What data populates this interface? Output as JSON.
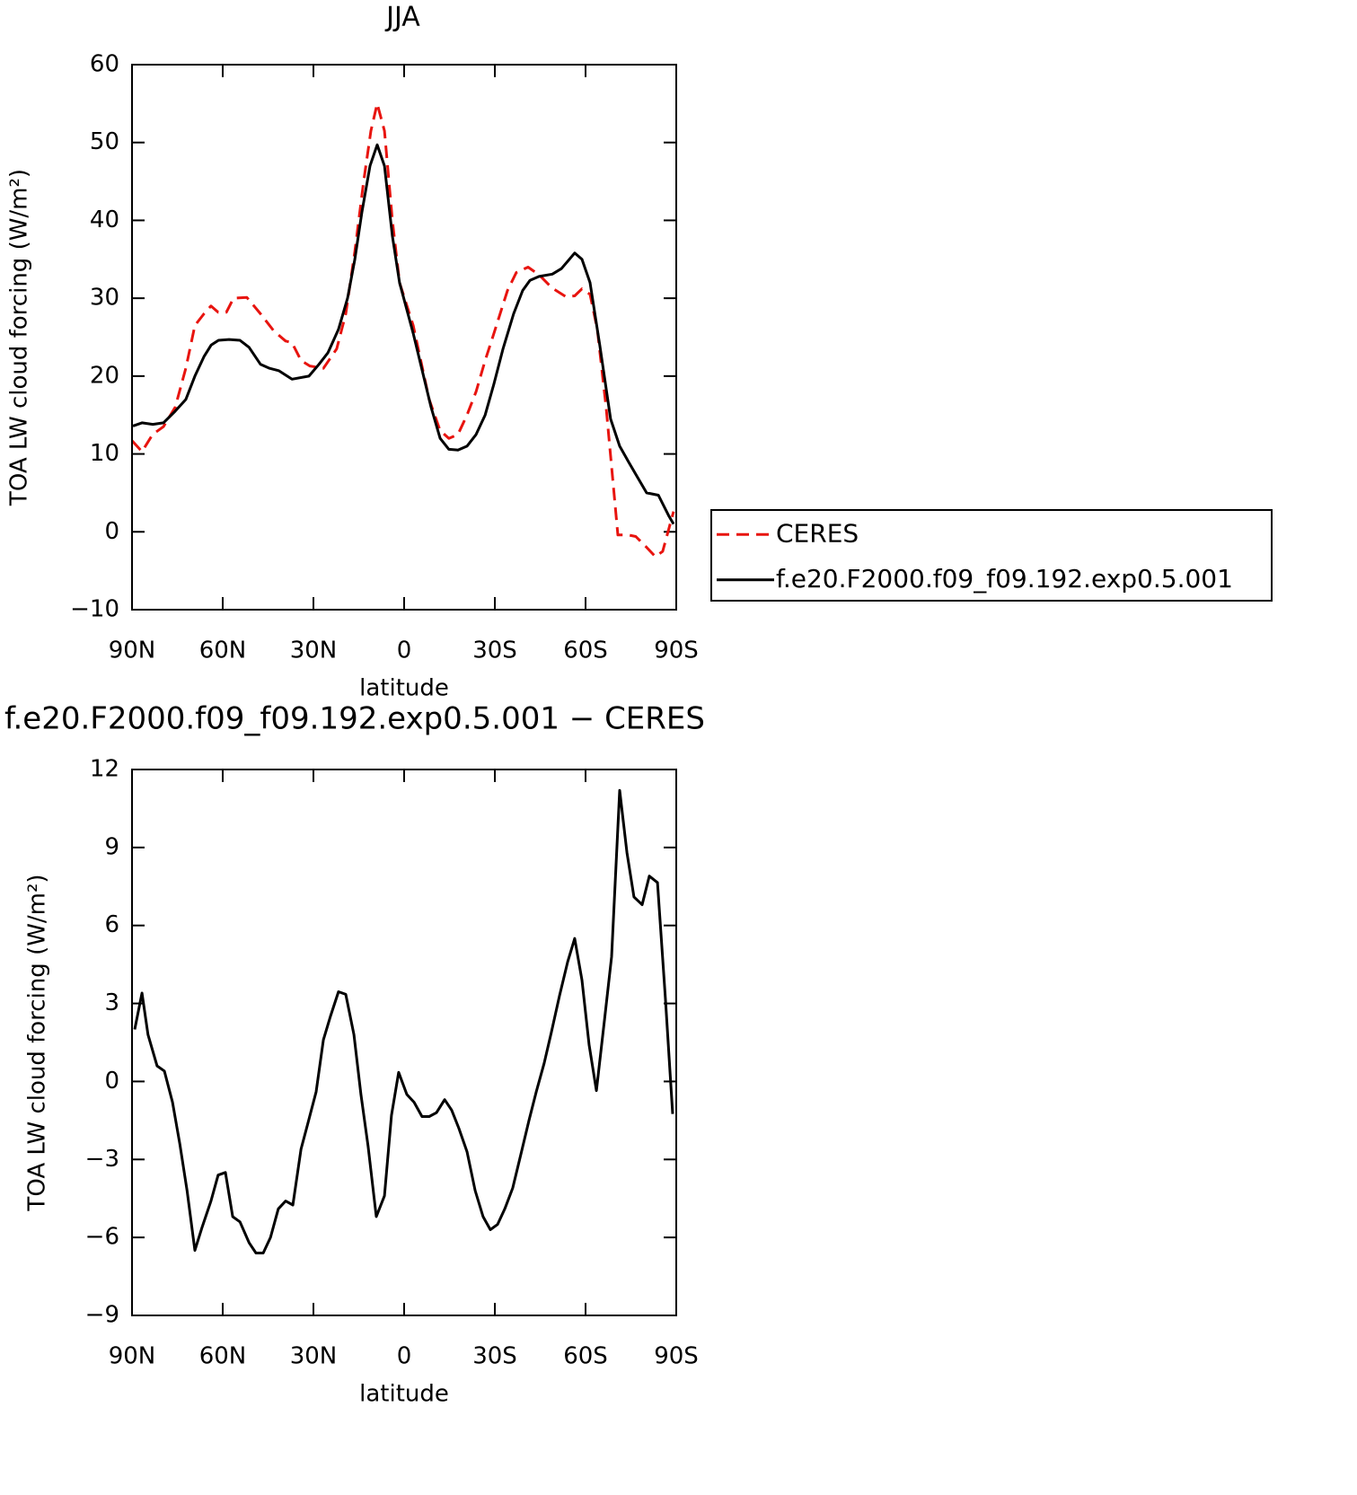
{
  "chart_data": [
    {
      "type": "line",
      "title": "JJA",
      "xlabel": "latitude",
      "ylabel": "TOA LW cloud forcing (W/m²)",
      "xlim": [
        90,
        -90
      ],
      "ylim": [
        -10,
        60
      ],
      "xticks": [
        {
          "value": 90,
          "label": "90N"
        },
        {
          "value": 60,
          "label": "60N"
        },
        {
          "value": 30,
          "label": "30N"
        },
        0,
        {
          "value": -30,
          "label": "30S"
        },
        {
          "value": -60,
          "label": "60S"
        },
        {
          "value": -90,
          "label": "90S"
        }
      ],
      "yticks": [
        {
          "value": -10,
          "label": "−10"
        },
        0,
        10,
        20,
        30,
        40,
        50,
        60
      ],
      "legend": "right",
      "series": [
        {
          "name": "CERES",
          "color": "#e8140f",
          "dashed": true,
          "x": [
            90,
            86.7,
            83.2,
            79.6,
            75.7,
            72.2,
            69.2,
            66.2,
            63.9,
            61.5,
            58.8,
            56.4,
            52,
            47.5,
            43.1,
            39.2,
            37.1,
            34.1,
            31.2,
            26.7,
            22.3,
            19.3,
            16.3,
            13.4,
            11,
            8.9,
            6.5,
            3.9,
            1.5,
            -3,
            -8.3,
            -11.9,
            -14.8,
            -17.8,
            -20.8,
            -23.8,
            -26.8,
            -29.7,
            -34.2,
            -37.1,
            -41,
            -44.6,
            -49,
            -53.5,
            -56.4,
            -58.8,
            -61.5,
            -63.9,
            -66.8,
            -70.7,
            -74.2,
            -76.6,
            -80.2,
            -83.1,
            -85.5,
            -89.1
          ],
          "values": [
            11.7,
            10.3,
            12.5,
            13.5,
            16,
            21,
            26.5,
            28,
            29,
            28.2,
            28.2,
            30,
            30.1,
            28,
            25.8,
            24.5,
            24.3,
            22,
            21.3,
            21,
            23.5,
            28,
            36,
            45,
            51.5,
            55,
            51.5,
            40,
            32,
            26.5,
            17,
            13,
            12,
            12.5,
            15,
            18,
            22,
            25.5,
            31,
            33.3,
            34,
            33,
            31.3,
            30.2,
            30.3,
            31.2,
            30.5,
            26,
            16,
            -0.4,
            -0.4,
            -0.6,
            -2,
            -3.2,
            -2.5,
            2.6
          ]
        },
        {
          "name": "f.e20.F2000.f09_f09.192.exp0.5.001",
          "color": "#000000",
          "dashed": false,
          "x": [
            89.7,
            86.7,
            83.1,
            79.6,
            75.7,
            72.2,
            69.2,
            66.2,
            63.8,
            61.4,
            57.9,
            54.3,
            51.3,
            47.5,
            44.5,
            41.5,
            37.1,
            31.5,
            28.2,
            25.2,
            21.7,
            18.7,
            16.3,
            14,
            11.3,
            8.9,
            6.5,
            3.9,
            1.5,
            -3,
            -8.9,
            -11.9,
            -14.8,
            -17.8,
            -20.8,
            -23.8,
            -26.8,
            -29.7,
            -32.7,
            -36.2,
            -39.2,
            -41.6,
            -44.6,
            -49,
            -52,
            -56.4,
            -58.8,
            -61.5,
            -64.7,
            -68.3,
            -71.3,
            -74.2,
            -77.2,
            -80.2,
            -84.1,
            -87.6,
            -89.1
          ],
          "values": [
            13.6,
            14,
            13.8,
            14,
            15.5,
            17,
            20,
            22.5,
            24,
            24.6,
            24.7,
            24.6,
            23.7,
            21.5,
            21,
            20.7,
            19.6,
            20,
            21.5,
            23,
            26,
            30,
            35,
            41,
            47,
            49.7,
            47,
            38,
            32,
            25.5,
            16,
            12,
            10.6,
            10.5,
            11,
            12.5,
            15,
            19,
            23.5,
            28,
            31,
            32.3,
            32.8,
            33.1,
            33.8,
            35.8,
            35,
            32,
            24,
            14.5,
            11,
            9,
            7,
            5,
            4.7,
            2,
            1
          ]
        }
      ]
    },
    {
      "type": "line",
      "title": "f.e20.F2000.f09_f09.192.exp0.5.001 − CERES",
      "xlabel": "latitude",
      "ylabel": "TOA LW cloud forcing (W/m²)",
      "xlim": [
        90,
        -90
      ],
      "ylim": [
        -9,
        12
      ],
      "xticks": [
        {
          "value": 90,
          "label": "90N"
        },
        {
          "value": 60,
          "label": "60N"
        },
        {
          "value": 30,
          "label": "30N"
        },
        0,
        {
          "value": -30,
          "label": "30S"
        },
        {
          "value": -60,
          "label": "60S"
        },
        {
          "value": -90,
          "label": "90S"
        }
      ],
      "yticks": [
        {
          "value": -9,
          "label": "−9"
        },
        {
          "value": -6,
          "label": "−6"
        },
        {
          "value": -3,
          "label": "−3"
        },
        0,
        3,
        6,
        9,
        12
      ],
      "series": [
        {
          "color": "#000000",
          "dashed": false,
          "x": [
            89.1,
            86.7,
            84.7,
            81.7,
            79.3,
            76.6,
            74.2,
            71.8,
            69.2,
            66.8,
            63.9,
            61.5,
            59.1,
            56.7,
            54.3,
            51.3,
            49,
            46.6,
            44.2,
            41.6,
            39.2,
            36.8,
            34.1,
            31.8,
            29.1,
            26.7,
            24.4,
            21.7,
            19.3,
            16.6,
            14.3,
            11.9,
            9.2,
            6.5,
            4.2,
            1.8,
            -0.9,
            -3.3,
            -5.9,
            -8.3,
            -10.7,
            -13.4,
            -15.7,
            -18.1,
            -20.8,
            -23.5,
            -26.1,
            -28.5,
            -30.9,
            -33.3,
            -35.9,
            -38.6,
            -41.3,
            -43.7,
            -46.3,
            -48.7,
            -51.4,
            -54.1,
            -56.4,
            -58.8,
            -61.2,
            -63.6,
            -66.3,
            -68.6,
            -71.3,
            -73.7,
            -76,
            -78.7,
            -81.1,
            -83.8,
            -86.4,
            -88.8
          ],
          "values": [
            2,
            3.4,
            1.8,
            0.6,
            0.4,
            -0.8,
            -2.4,
            -4.2,
            -6.5,
            -5.6,
            -4.6,
            -3.6,
            -3.5,
            -5.2,
            -5.4,
            -6.2,
            -6.6,
            -6.6,
            -6,
            -4.9,
            -4.6,
            -4.75,
            -2.6,
            -1.6,
            -0.4,
            1.6,
            2.5,
            3.45,
            3.35,
            1.8,
            -0.5,
            -2.5,
            -5.2,
            -4.4,
            -1.3,
            0.35,
            -0.5,
            -0.8,
            -1.35,
            -1.35,
            -1.2,
            -0.7,
            -1.1,
            -1.8,
            -2.7,
            -4.2,
            -5.2,
            -5.7,
            -5.5,
            -4.9,
            -4.1,
            -2.8,
            -1.5,
            -0.4,
            0.7,
            1.9,
            3.3,
            4.6,
            5.5,
            3.9,
            1.4,
            -0.35,
            2.4,
            4.8,
            11.2,
            8.8,
            7.1,
            6.8,
            7.9,
            7.65,
            3.2,
            -1.25
          ]
        }
      ]
    }
  ]
}
